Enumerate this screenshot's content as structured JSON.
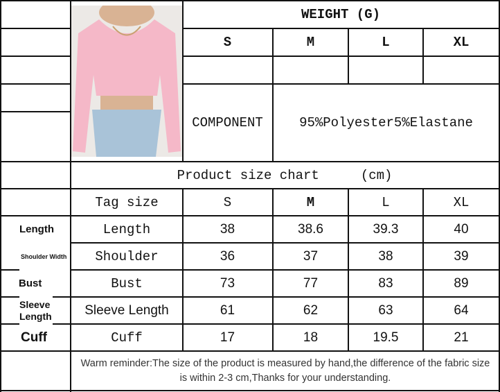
{
  "weight": {
    "title": "WEIGHT (G)",
    "sizes": [
      "S",
      "M",
      "L",
      "XL"
    ],
    "values": [
      "",
      "",
      "",
      ""
    ]
  },
  "component": {
    "label": "COMPONENT",
    "value": "95%Polyester5%Elastane"
  },
  "chart": {
    "title": "Product size chart",
    "unit": "(cm)",
    "tag_label": "Tag size",
    "sizes": [
      "S",
      "M",
      "L",
      "XL"
    ],
    "rows": [
      {
        "side": "Length",
        "label": "Length",
        "values": [
          "38",
          "38.6",
          "39.3",
          "40"
        ]
      },
      {
        "side": "Shoulder Width",
        "label": "Shoulder",
        "values": [
          "36",
          "37",
          "38",
          "39"
        ]
      },
      {
        "side": "Bust",
        "label": "Bust",
        "values": [
          "73",
          "77",
          "83",
          "89"
        ]
      },
      {
        "side": "Sleeve Length",
        "label": "Sleeve Length",
        "values": [
          "61",
          "62",
          "63",
          "64"
        ]
      },
      {
        "side": "Cuff",
        "label": "Cuff",
        "values": [
          "17",
          "18",
          "19.5",
          "21"
        ]
      }
    ]
  },
  "reminder": "Warm reminder:The size of the product is measured by hand,the difference of the fabric size is within 2-3 cm,Thanks for your understanding.",
  "colors": {
    "shirt": "#f5b8c8",
    "jeans": "#a9c3d8",
    "photo_bg": "#ece9e6"
  }
}
